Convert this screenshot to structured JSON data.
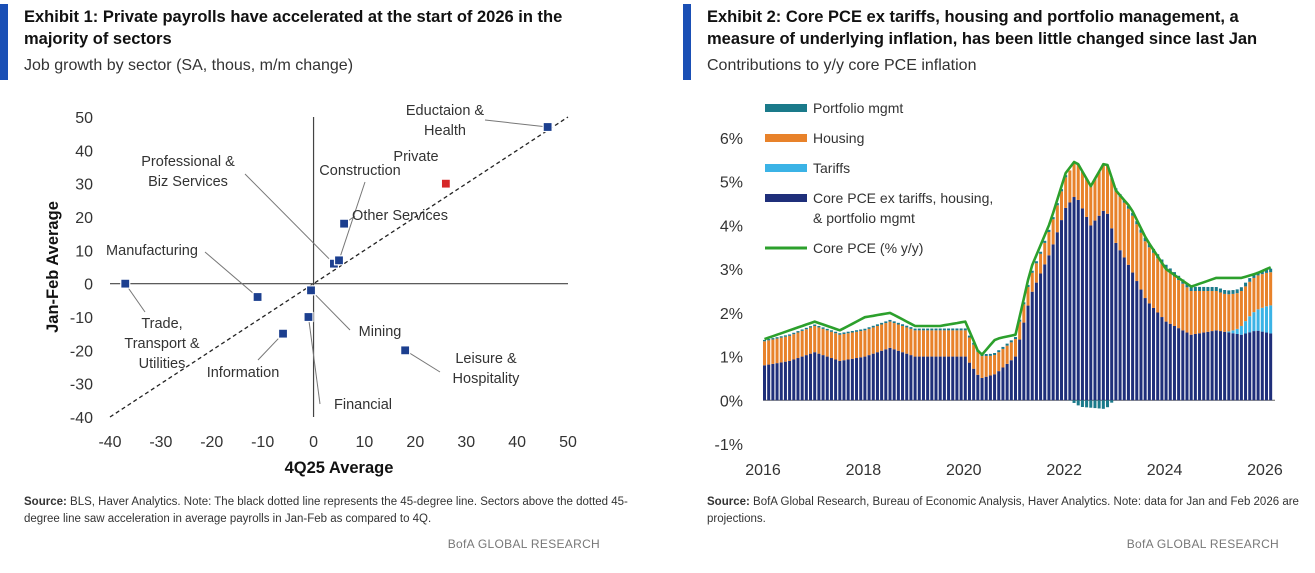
{
  "exhibit1": {
    "title": "Exhibit 1: Private payrolls have accelerated at the start of 2026 in the majority of sectors",
    "subtitle": "Job growth by sector (SA, thous, m/m change)",
    "source_label": "Source:",
    "source_text": " BLS, Haver Analytics. Note: The black dotted line represents the 45-degree line. Sectors above the dotted 45-degree line saw acceleration in average payrolls in Jan-Feb as compared to 4Q.",
    "brand": "BofA GLOBAL RESEARCH"
  },
  "exhibit2": {
    "title": "Exhibit 2: Core PCE ex tariffs, housing and portfolio management, a measure of underlying inflation, has been little changed since last Jan",
    "subtitle": "Contributions to y/y core PCE inflation",
    "source_label": "Source:",
    "source_text": " BofA Global Research, Bureau of Economic Analysis, Haver Analytics. Note: data for Jan and Feb 2026 are projections.",
    "brand": "BofA GLOBAL RESEARCH"
  },
  "colors": {
    "navy": "#1f2f7a",
    "orange": "#e8822a",
    "lightblue": "#3bb3e6",
    "teal": "#1a7a8a",
    "green": "#2ca02c",
    "private_red": "#d62728",
    "point_blue": "#1c3f8f"
  },
  "chart_data": [
    {
      "type": "scatter",
      "xlabel": "4Q25 Average",
      "ylabel": "Jan-Feb Average",
      "xlim": [
        -40,
        50
      ],
      "ylim": [
        -40,
        50
      ],
      "xticks": [
        -40,
        -30,
        -20,
        -10,
        0,
        10,
        20,
        30,
        40,
        50
      ],
      "yticks": [
        50,
        40,
        30,
        20,
        10,
        0,
        -10,
        -20,
        -30,
        -40
      ],
      "reference_line": "45-degree line (y = x)",
      "points": [
        {
          "label": "Eductaion & Health",
          "x": 46,
          "y": 47
        },
        {
          "label": "Private",
          "x": 26,
          "y": 30
        },
        {
          "label": "Professional & Biz Services",
          "x": 4,
          "y": 6
        },
        {
          "label": "Construction",
          "x": 5,
          "y": 7
        },
        {
          "label": "Other Services",
          "x": 6,
          "y": 18
        },
        {
          "label": "Manufacturing",
          "x": -11,
          "y": -4
        },
        {
          "label": "Trade, Transport & Utilities",
          "x": -37,
          "y": 0
        },
        {
          "label": "Information",
          "x": -6,
          "y": -15
        },
        {
          "label": "Mining",
          "x": -0.5,
          "y": -2
        },
        {
          "label": "Financial",
          "x": -1,
          "y": -10
        },
        {
          "label": "Leisure & Hospitality",
          "x": 18,
          "y": -20
        }
      ]
    },
    {
      "type": "bar",
      "stacked": true,
      "title": "Contributions to y/y core PCE inflation",
      "x_tick_labels": [
        "2016",
        "2018",
        "2020",
        "2022",
        "2024",
        "2026"
      ],
      "y_tick_labels": [
        "6%",
        "5%",
        "4%",
        "3%",
        "2%",
        "1%",
        "0%",
        "-1%"
      ],
      "ylim": [
        -1,
        6
      ],
      "x_range": [
        "2016-01",
        "2026-02"
      ],
      "legend": [
        {
          "name": "Portfolio mgmt",
          "color": "#1a7a8a"
        },
        {
          "name": "Housing",
          "color": "#e8822a"
        },
        {
          "name": "Tariffs",
          "color": "#3bb3e6"
        },
        {
          "name": "Core PCE ex tariffs, housing, & portfolio mgmt",
          "color": "#1f2f7a"
        },
        {
          "name": "Core PCE (% y/y)",
          "color": "#2ca02c"
        }
      ],
      "legend_rows": [
        {
          "label": "Portfolio mgmt",
          "kind": "bar",
          "color": "#1a7a8a"
        },
        {
          "label": "Housing",
          "kind": "bar",
          "color": "#e8822a"
        },
        {
          "label": "Tariffs",
          "kind": "bar",
          "color": "#3bb3e6"
        },
        {
          "label": "Core PCE ex tariffs, housing,",
          "kind": "bar",
          "color": "#1f2f7a"
        },
        {
          "label": "& portfolio mgmt",
          "kind": "none",
          "color": ""
        },
        {
          "label": "Core PCE (% y/y)",
          "kind": "line",
          "color": "#2ca02c"
        }
      ],
      "anchors": {
        "core_ex": [
          [
            2016.0,
            0.8
          ],
          [
            2016.5,
            0.9
          ],
          [
            2017.0,
            1.1
          ],
          [
            2017.5,
            0.9
          ],
          [
            2018.0,
            1.0
          ],
          [
            2018.5,
            1.2
          ],
          [
            2019.0,
            1.0
          ],
          [
            2019.5,
            1.0
          ],
          [
            2020.0,
            1.0
          ],
          [
            2020.3,
            0.5
          ],
          [
            2020.6,
            0.6
          ],
          [
            2021.0,
            1.0
          ],
          [
            2021.3,
            2.4
          ],
          [
            2021.7,
            3.4
          ],
          [
            2022.0,
            4.4
          ],
          [
            2022.2,
            4.7
          ],
          [
            2022.5,
            4.0
          ],
          [
            2022.8,
            4.4
          ],
          [
            2023.0,
            3.6
          ],
          [
            2023.3,
            3.0
          ],
          [
            2023.6,
            2.3
          ],
          [
            2024.0,
            1.8
          ],
          [
            2024.5,
            1.5
          ],
          [
            2025.0,
            1.6
          ],
          [
            2025.5,
            1.5
          ],
          [
            2025.8,
            1.6
          ],
          [
            2026.2,
            1.5
          ]
        ],
        "housing": [
          [
            2016.0,
            0.55
          ],
          [
            2017.0,
            0.6
          ],
          [
            2018.0,
            0.6
          ],
          [
            2019.0,
            0.6
          ],
          [
            2020.0,
            0.6
          ],
          [
            2020.5,
            0.45
          ],
          [
            2021.0,
            0.4
          ],
          [
            2021.5,
            0.45
          ],
          [
            2022.0,
            0.7
          ],
          [
            2022.5,
            0.9
          ],
          [
            2023.0,
            1.2
          ],
          [
            2023.3,
            1.3
          ],
          [
            2023.6,
            1.3
          ],
          [
            2024.0,
            1.2
          ],
          [
            2024.5,
            1.0
          ],
          [
            2025.0,
            0.9
          ],
          [
            2025.5,
            0.8
          ],
          [
            2026.2,
            0.75
          ]
        ],
        "tariffs": [
          [
            2016.0,
            0
          ],
          [
            2025.2,
            0
          ],
          [
            2025.4,
            0.1
          ],
          [
            2025.7,
            0.4
          ],
          [
            2026.0,
            0.6
          ],
          [
            2026.2,
            0.7
          ]
        ],
        "portfolio": [
          [
            2016.0,
            0.03
          ],
          [
            2022.0,
            0.05
          ],
          [
            2022.3,
            -0.15
          ],
          [
            2022.8,
            -0.2
          ],
          [
            2023.0,
            0.05
          ],
          [
            2024.0,
            0.1
          ],
          [
            2026.2,
            0.08
          ]
        ],
        "core_pce": [
          [
            2016.0,
            1.4
          ],
          [
            2016.5,
            1.6
          ],
          [
            2017.0,
            1.8
          ],
          [
            2017.5,
            1.6
          ],
          [
            2018.0,
            1.9
          ],
          [
            2018.5,
            2.0
          ],
          [
            2019.0,
            1.7
          ],
          [
            2019.5,
            1.7
          ],
          [
            2020.0,
            1.8
          ],
          [
            2020.3,
            1.0
          ],
          [
            2020.6,
            1.4
          ],
          [
            2021.0,
            1.5
          ],
          [
            2021.3,
            3.0
          ],
          [
            2021.7,
            4.1
          ],
          [
            2022.0,
            5.2
          ],
          [
            2022.2,
            5.5
          ],
          [
            2022.5,
            4.9
          ],
          [
            2022.8,
            5.5
          ],
          [
            2023.0,
            4.8
          ],
          [
            2023.3,
            4.4
          ],
          [
            2023.6,
            3.7
          ],
          [
            2024.0,
            3.0
          ],
          [
            2024.5,
            2.6
          ],
          [
            2025.0,
            2.8
          ],
          [
            2025.5,
            2.8
          ],
          [
            2025.8,
            2.9
          ],
          [
            2026.2,
            3.1
          ]
        ]
      }
    }
  ]
}
